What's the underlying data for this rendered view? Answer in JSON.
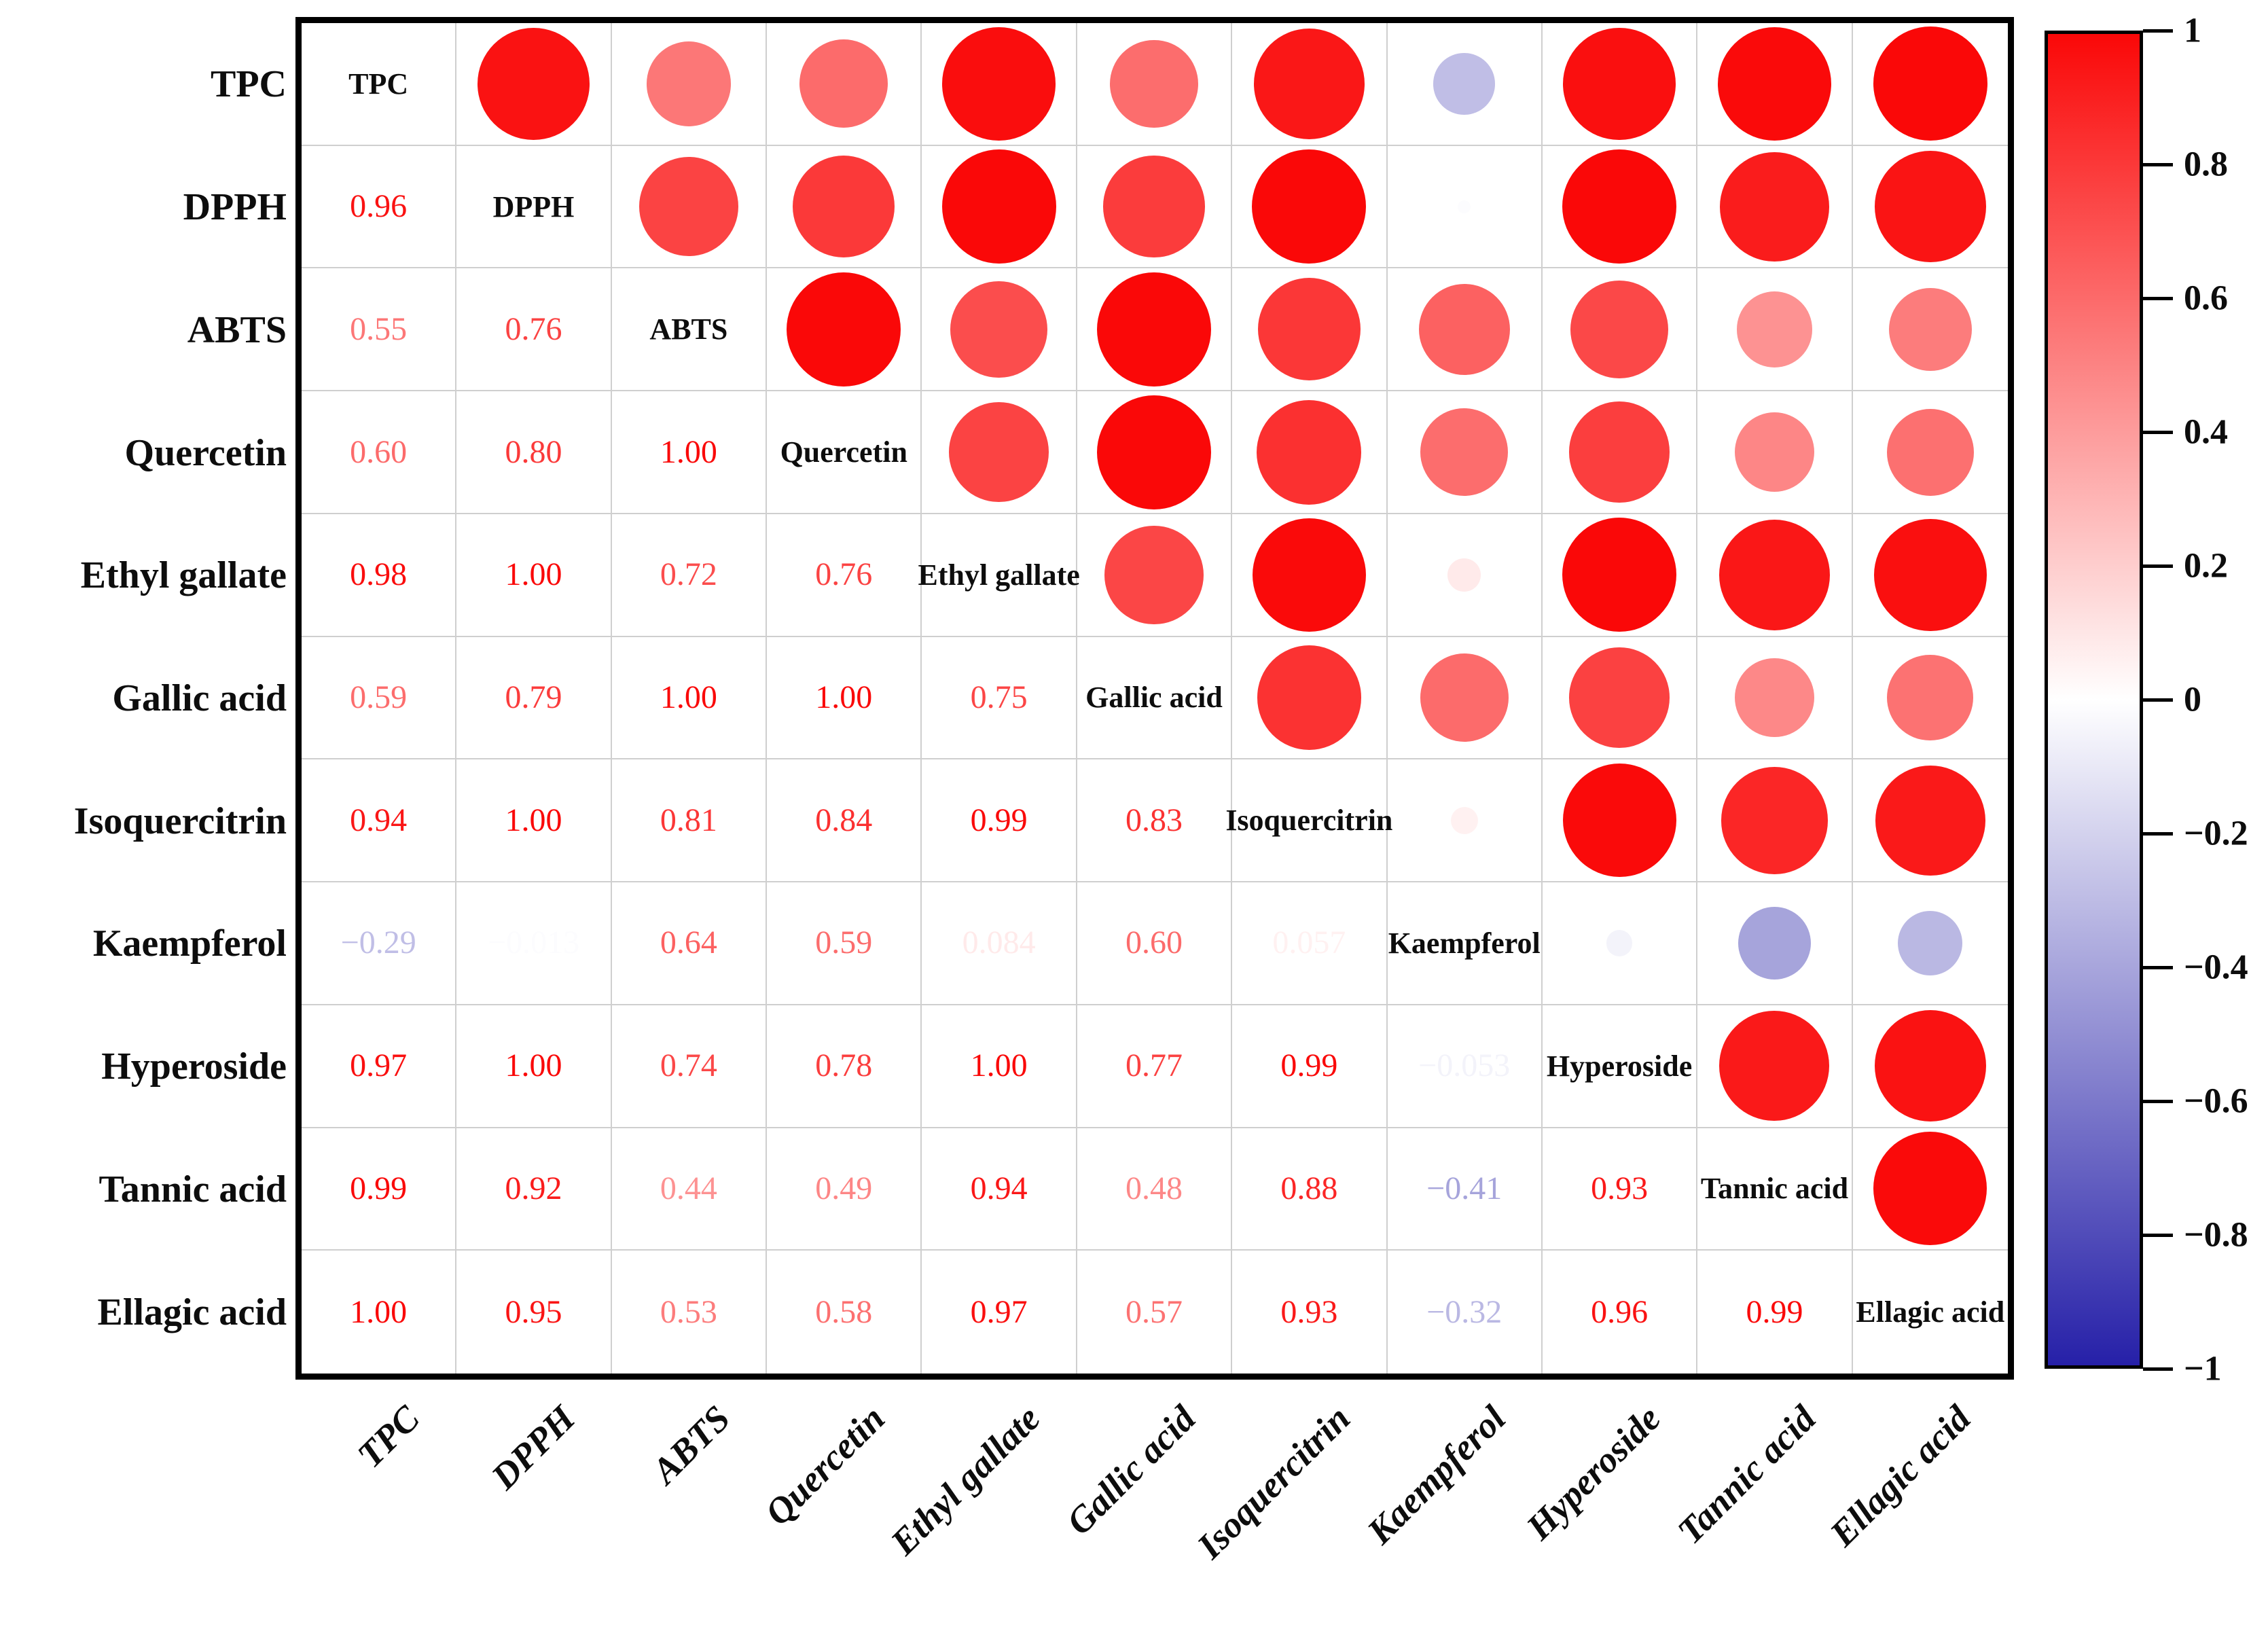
{
  "figure": {
    "title": "",
    "background": "#ffffff"
  },
  "chart_data": {
    "type": "heatmap",
    "subtype": "correlation-matrix",
    "variables": [
      "TPC",
      "DPPH",
      "ABTS",
      "Quercetin",
      "Ethyl gallate",
      "Gallic acid",
      "Isoquercitrin",
      "Kaempferol",
      "Hyperoside",
      "Tannic acid",
      "Ellagic acid"
    ],
    "lower_triangle_display": [
      [],
      [
        "0.96"
      ],
      [
        "0.55",
        "0.76"
      ],
      [
        "0.60",
        "0.80",
        "1.00"
      ],
      [
        "0.98",
        "1.00",
        "0.72",
        "0.76"
      ],
      [
        "0.59",
        "0.79",
        "1.00",
        "1.00",
        "0.75"
      ],
      [
        "0.94",
        "1.00",
        "0.81",
        "0.84",
        "0.99",
        "0.83"
      ],
      [
        "−0.29",
        "−0.013",
        "0.64",
        "0.59",
        "0.084",
        "0.60",
        "0.057"
      ],
      [
        "0.97",
        "1.00",
        "0.74",
        "0.78",
        "1.00",
        "0.77",
        "0.99",
        "−0.053"
      ],
      [
        "0.99",
        "0.92",
        "0.44",
        "0.49",
        "0.94",
        "0.48",
        "0.88",
        "−0.41",
        "0.93"
      ],
      [
        "1.00",
        "0.95",
        "0.53",
        "0.58",
        "0.97",
        "0.57",
        "0.93",
        "−0.32",
        "0.96",
        "0.99"
      ]
    ],
    "upper_triangle": "circles sized by sqrt(|r|), colored by correlation colormap",
    "colorbar": {
      "position": "right",
      "range": [
        -1,
        1
      ],
      "ticks": [
        "1",
        "0.8",
        "0.6",
        "0.4",
        "0.2",
        "0",
        "−0.2",
        "−0.4",
        "−0.6",
        "−0.8",
        "−1"
      ],
      "max_color": "#FA0808",
      "mid_color": "#FFFFFF",
      "min_color": "#2620A8"
    },
    "grid": true,
    "grid_color": "#cfcfcf",
    "value_color_rule": "text and circles share blue-white-red colormap",
    "xlabel": "",
    "ylabel": ""
  }
}
